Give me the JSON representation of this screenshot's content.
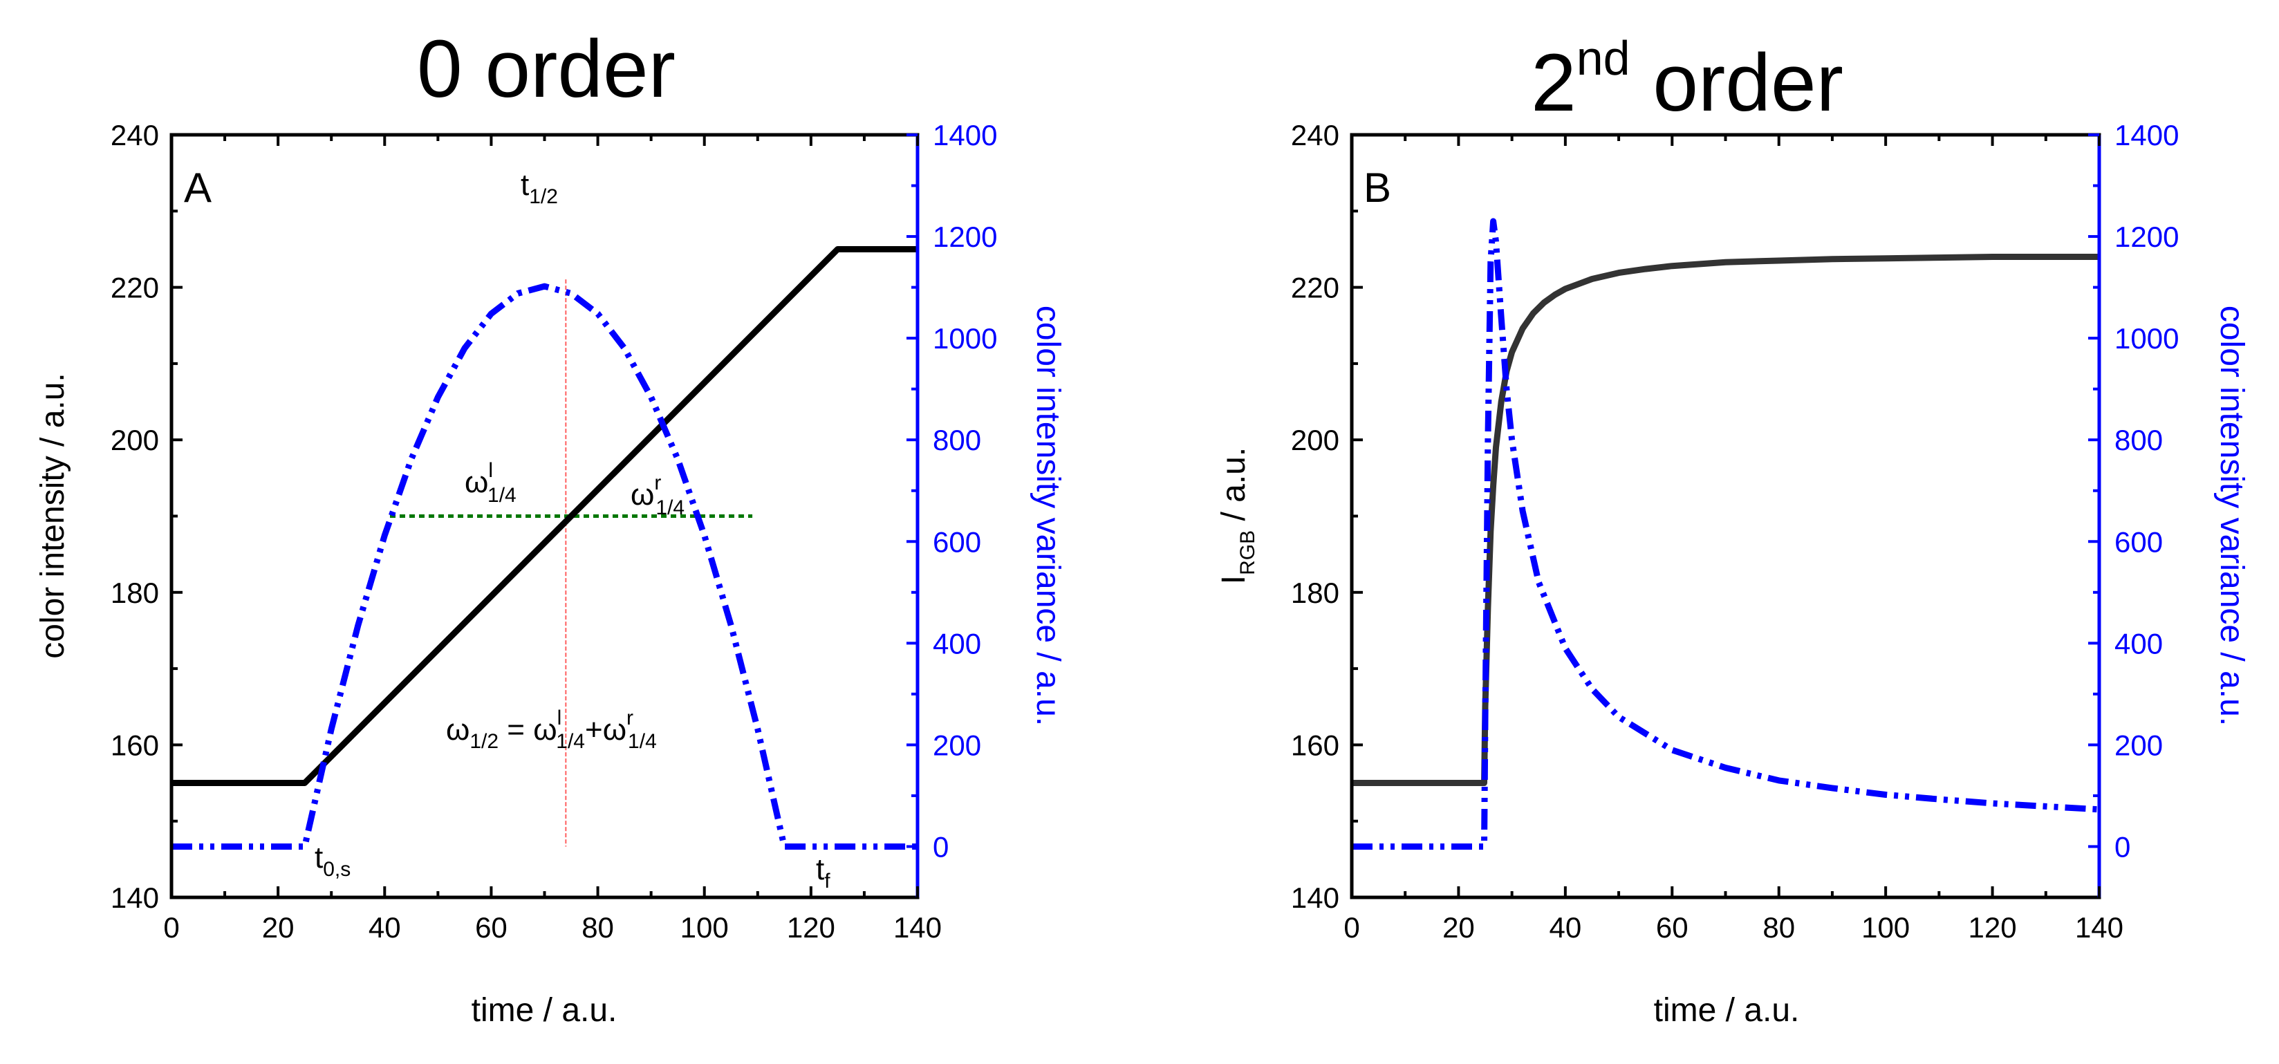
{
  "chart_data": [
    {
      "type": "line",
      "panel_label": "A",
      "title": "0 order",
      "xlabel": "time / a.u.",
      "ylabel": "color intensity  / a.u.",
      "y2label": "color intensity variance / a.u.",
      "xlim": [
        0,
        140
      ],
      "ylim": [
        140,
        240
      ],
      "y2lim": [
        -100,
        1400
      ],
      "xticks": [
        "0",
        "20",
        "40",
        "60",
        "80",
        "100",
        "120",
        "140"
      ],
      "yticks": [
        "140",
        "160",
        "180",
        "200",
        "220",
        "240"
      ],
      "y2ticks": [
        "0",
        "200",
        "400",
        "600",
        "800",
        "1000",
        "1200",
        "1400"
      ],
      "series": [
        {
          "name": "color intensity",
          "axis": "left",
          "color": "#000000",
          "style": "solid",
          "x": [
            0,
            25,
            125,
            140
          ],
          "y": [
            155,
            155,
            225,
            225
          ]
        },
        {
          "name": "color intensity variance",
          "axis": "right",
          "color": "#0000ff",
          "style": "dash-dot-dot",
          "x": [
            0,
            25,
            30,
            35,
            40,
            45,
            50,
            55,
            60,
            65,
            70,
            75,
            80,
            85,
            90,
            95,
            100,
            105,
            110,
            115,
            120,
            125,
            140
          ],
          "y": [
            0,
            0,
            231,
            435,
            612,
            762,
            884,
            980,
            1048,
            1088,
            1102,
            1088,
            1048,
            980,
            884,
            762,
            612,
            435,
            231,
            0,
            0,
            0,
            0
          ]
        }
      ],
      "annotations": {
        "t_half": {
          "main": "t",
          "sub": "1/2"
        },
        "t_0s": {
          "main": "t",
          "sub": "0,s"
        },
        "t_f": {
          "main": "t",
          "sub": "f"
        },
        "omega_left": {
          "main": "ω",
          "sup": "l",
          "sub": "1/4"
        },
        "omega_right": {
          "main": "ω",
          "sup": "r",
          "sub": "1/4"
        },
        "omega_eq": {
          "lhs": "ω",
          "lhs_sub": "1/2",
          "eq": " = ",
          "t1": "ω",
          "t1_sup": "l",
          "t1_sub": "1/4",
          "plus": "+",
          "t2": "ω",
          "t2_sup": "r",
          "t2_sub": "1/4"
        }
      },
      "markers": {
        "t_half_x": 74,
        "quarter_line_y": 190,
        "quarter_line_x": [
          41,
          109
        ]
      },
      "colors": {
        "half_line": "#ff6060",
        "quarter_line": "#007700"
      }
    },
    {
      "type": "line",
      "panel_label": "B",
      "title_main": "2",
      "title_sup": "nd",
      "title_rest": " order",
      "xlabel": "time / a.u.",
      "ylabel_main": "I",
      "ylabel_sub": "RGB",
      "ylabel_rest": " / a.u.",
      "y2label": "color intensity variance / a.u.",
      "xlim": [
        0,
        140
      ],
      "ylim": [
        140,
        240
      ],
      "y2lim": [
        -100,
        1400
      ],
      "xticks": [
        "0",
        "20",
        "40",
        "60",
        "80",
        "100",
        "120",
        "140"
      ],
      "yticks": [
        "140",
        "160",
        "180",
        "200",
        "220",
        "240"
      ],
      "y2ticks": [
        "0",
        "200",
        "400",
        "600",
        "800",
        "1000",
        "1200",
        "1400"
      ],
      "series": [
        {
          "name": "I_RGB",
          "axis": "left",
          "color": "#333333",
          "style": "solid",
          "x": [
            0,
            24.8,
            25,
            25.5,
            26,
            26.5,
            27,
            28,
            29,
            30,
            32,
            34,
            36,
            38,
            40,
            45,
            50,
            55,
            60,
            70,
            80,
            90,
            100,
            110,
            120,
            130,
            140
          ],
          "y": [
            155,
            155,
            165,
            178,
            188,
            194,
            199,
            205,
            209,
            211.5,
            214.6,
            216.6,
            218,
            219,
            219.8,
            221.1,
            221.9,
            222.4,
            222.8,
            223.3,
            223.5,
            223.7,
            223.8,
            223.9,
            224,
            224,
            224
          ]
        },
        {
          "name": "color intensity variance",
          "axis": "right",
          "color": "#0000ff",
          "style": "dash-dot-dot",
          "x": [
            0,
            24.8,
            25,
            25.5,
            26,
            26.5,
            27,
            28,
            29,
            30,
            32,
            35,
            40,
            45,
            50,
            60,
            70,
            80,
            90,
            100,
            110,
            120,
            130,
            140
          ],
          "y": [
            0,
            0,
            250,
            800,
            1150,
            1230,
            1190,
            1040,
            900,
            800,
            660,
            520,
            390,
            310,
            255,
            190,
            155,
            130,
            115,
            102,
            93,
            85,
            79,
            73
          ]
        }
      ]
    }
  ]
}
